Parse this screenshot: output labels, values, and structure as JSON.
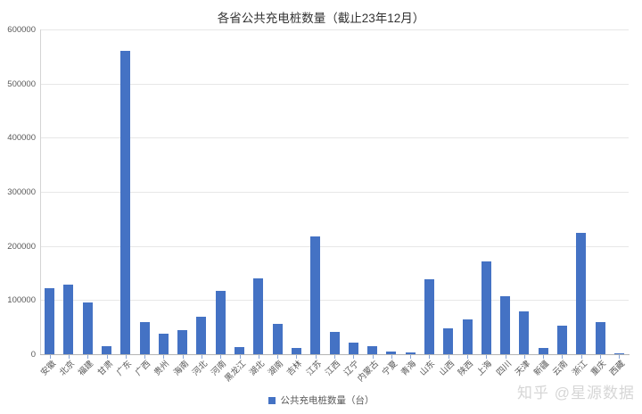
{
  "title": "各省公共充电桩数量（截止23年12月）",
  "legend": {
    "label": "公共充电桩数量（台）"
  },
  "watermark": "知乎 @星源数据",
  "colors": {
    "bar": "#4472c4",
    "grid": "#e7e7e7",
    "axis": "#b5b5b5",
    "tick": "#8aa6d6",
    "axis_text": "#595959",
    "title_text": "#333333",
    "watermark_text": "#d6d6d6"
  },
  "chart_data": {
    "type": "bar",
    "title": "各省公共充电桩数量（截止23年12月）",
    "xlabel": "",
    "ylabel": "",
    "ylim": [
      0,
      600000
    ],
    "y_ticks": [
      0,
      100000,
      200000,
      300000,
      400000,
      500000,
      600000
    ],
    "grid": true,
    "legend_position": "bottom",
    "series_name": "公共充电桩数量（台）",
    "categories": [
      "安徽",
      "北京",
      "福建",
      "甘肃",
      "广东",
      "广西",
      "贵州",
      "海南",
      "河北",
      "河南",
      "黑龙江",
      "湖北",
      "湖南",
      "吉林",
      "江苏",
      "江西",
      "辽宁",
      "内蒙古",
      "宁夏",
      "青海",
      "山东",
      "山西",
      "陕西",
      "上海",
      "四川",
      "天津",
      "新疆",
      "云南",
      "浙江",
      "重庆",
      "西藏"
    ],
    "values": [
      122000,
      128000,
      96000,
      15000,
      561000,
      59000,
      38000,
      44000,
      70000,
      117000,
      13000,
      140000,
      56000,
      11000,
      218000,
      42000,
      22000,
      15000,
      5000,
      4000,
      138000,
      48000,
      64000,
      172000,
      107000,
      79000,
      12000,
      53000,
      224000,
      59000,
      2000
    ]
  }
}
